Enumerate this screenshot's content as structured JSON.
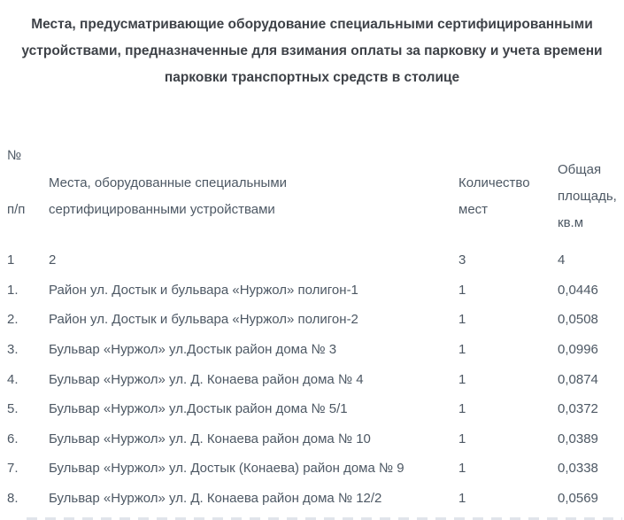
{
  "page": {
    "title": "Места, предусматривающие оборудование специальными сертифицированными устройствами, предназначенные для взимания оплаты за парковку и учета времени парковки транспортных средств в столице"
  },
  "table": {
    "columns": [
      {
        "id": "num",
        "label_line1": "№",
        "label_line2": "п/п"
      },
      {
        "id": "place",
        "label": "Места, оборудованные специальными сертифицированными устройствами"
      },
      {
        "id": "count",
        "label": "Количество мест"
      },
      {
        "id": "area",
        "label": "Общая площадь, кв.м"
      }
    ],
    "column_index_row": [
      "1",
      "2",
      "3",
      "4"
    ],
    "rows": [
      {
        "num": "1.",
        "place": "Район ул. Достык и бульвара «Нуржол» полигон-1",
        "count": "1",
        "area": "0,0446"
      },
      {
        "num": "2.",
        "place": "Район ул. Достык и бульвара «Нуржол» полигон-2",
        "count": "1",
        "area": "0,0508"
      },
      {
        "num": "3.",
        "place": "Бульвар «Нуржол» ул.Достык район дома № 3",
        "count": "1",
        "area": "0,0996"
      },
      {
        "num": "4.",
        "place": "Бульвар «Нуржол» ул. Д. Конаева район дома № 4",
        "count": "1",
        "area": "0,0874"
      },
      {
        "num": "5.",
        "place": "Бульвар «Нуржол» ул.Достык район дома № 5/1",
        "count": "1",
        "area": "0,0372"
      },
      {
        "num": "6.",
        "place": "Бульвар «Нуржол» ул. Д. Конаева район дома № 10",
        "count": "1",
        "area": "0,0389"
      },
      {
        "num": "7.",
        "place": "Бульвар «Нуржол» ул. Достык (Конаева) район дома № 9",
        "count": "1",
        "area": "0,0338"
      },
      {
        "num": "8.",
        "place": "Бульвар «Нуржол» ул. Д. Конаева район дома № 12/2",
        "count": "1",
        "area": "0,0569"
      }
    ]
  },
  "colors": {
    "background": "#ffffff",
    "title_text": "#3e4248",
    "body_text": "#4d5864"
  }
}
